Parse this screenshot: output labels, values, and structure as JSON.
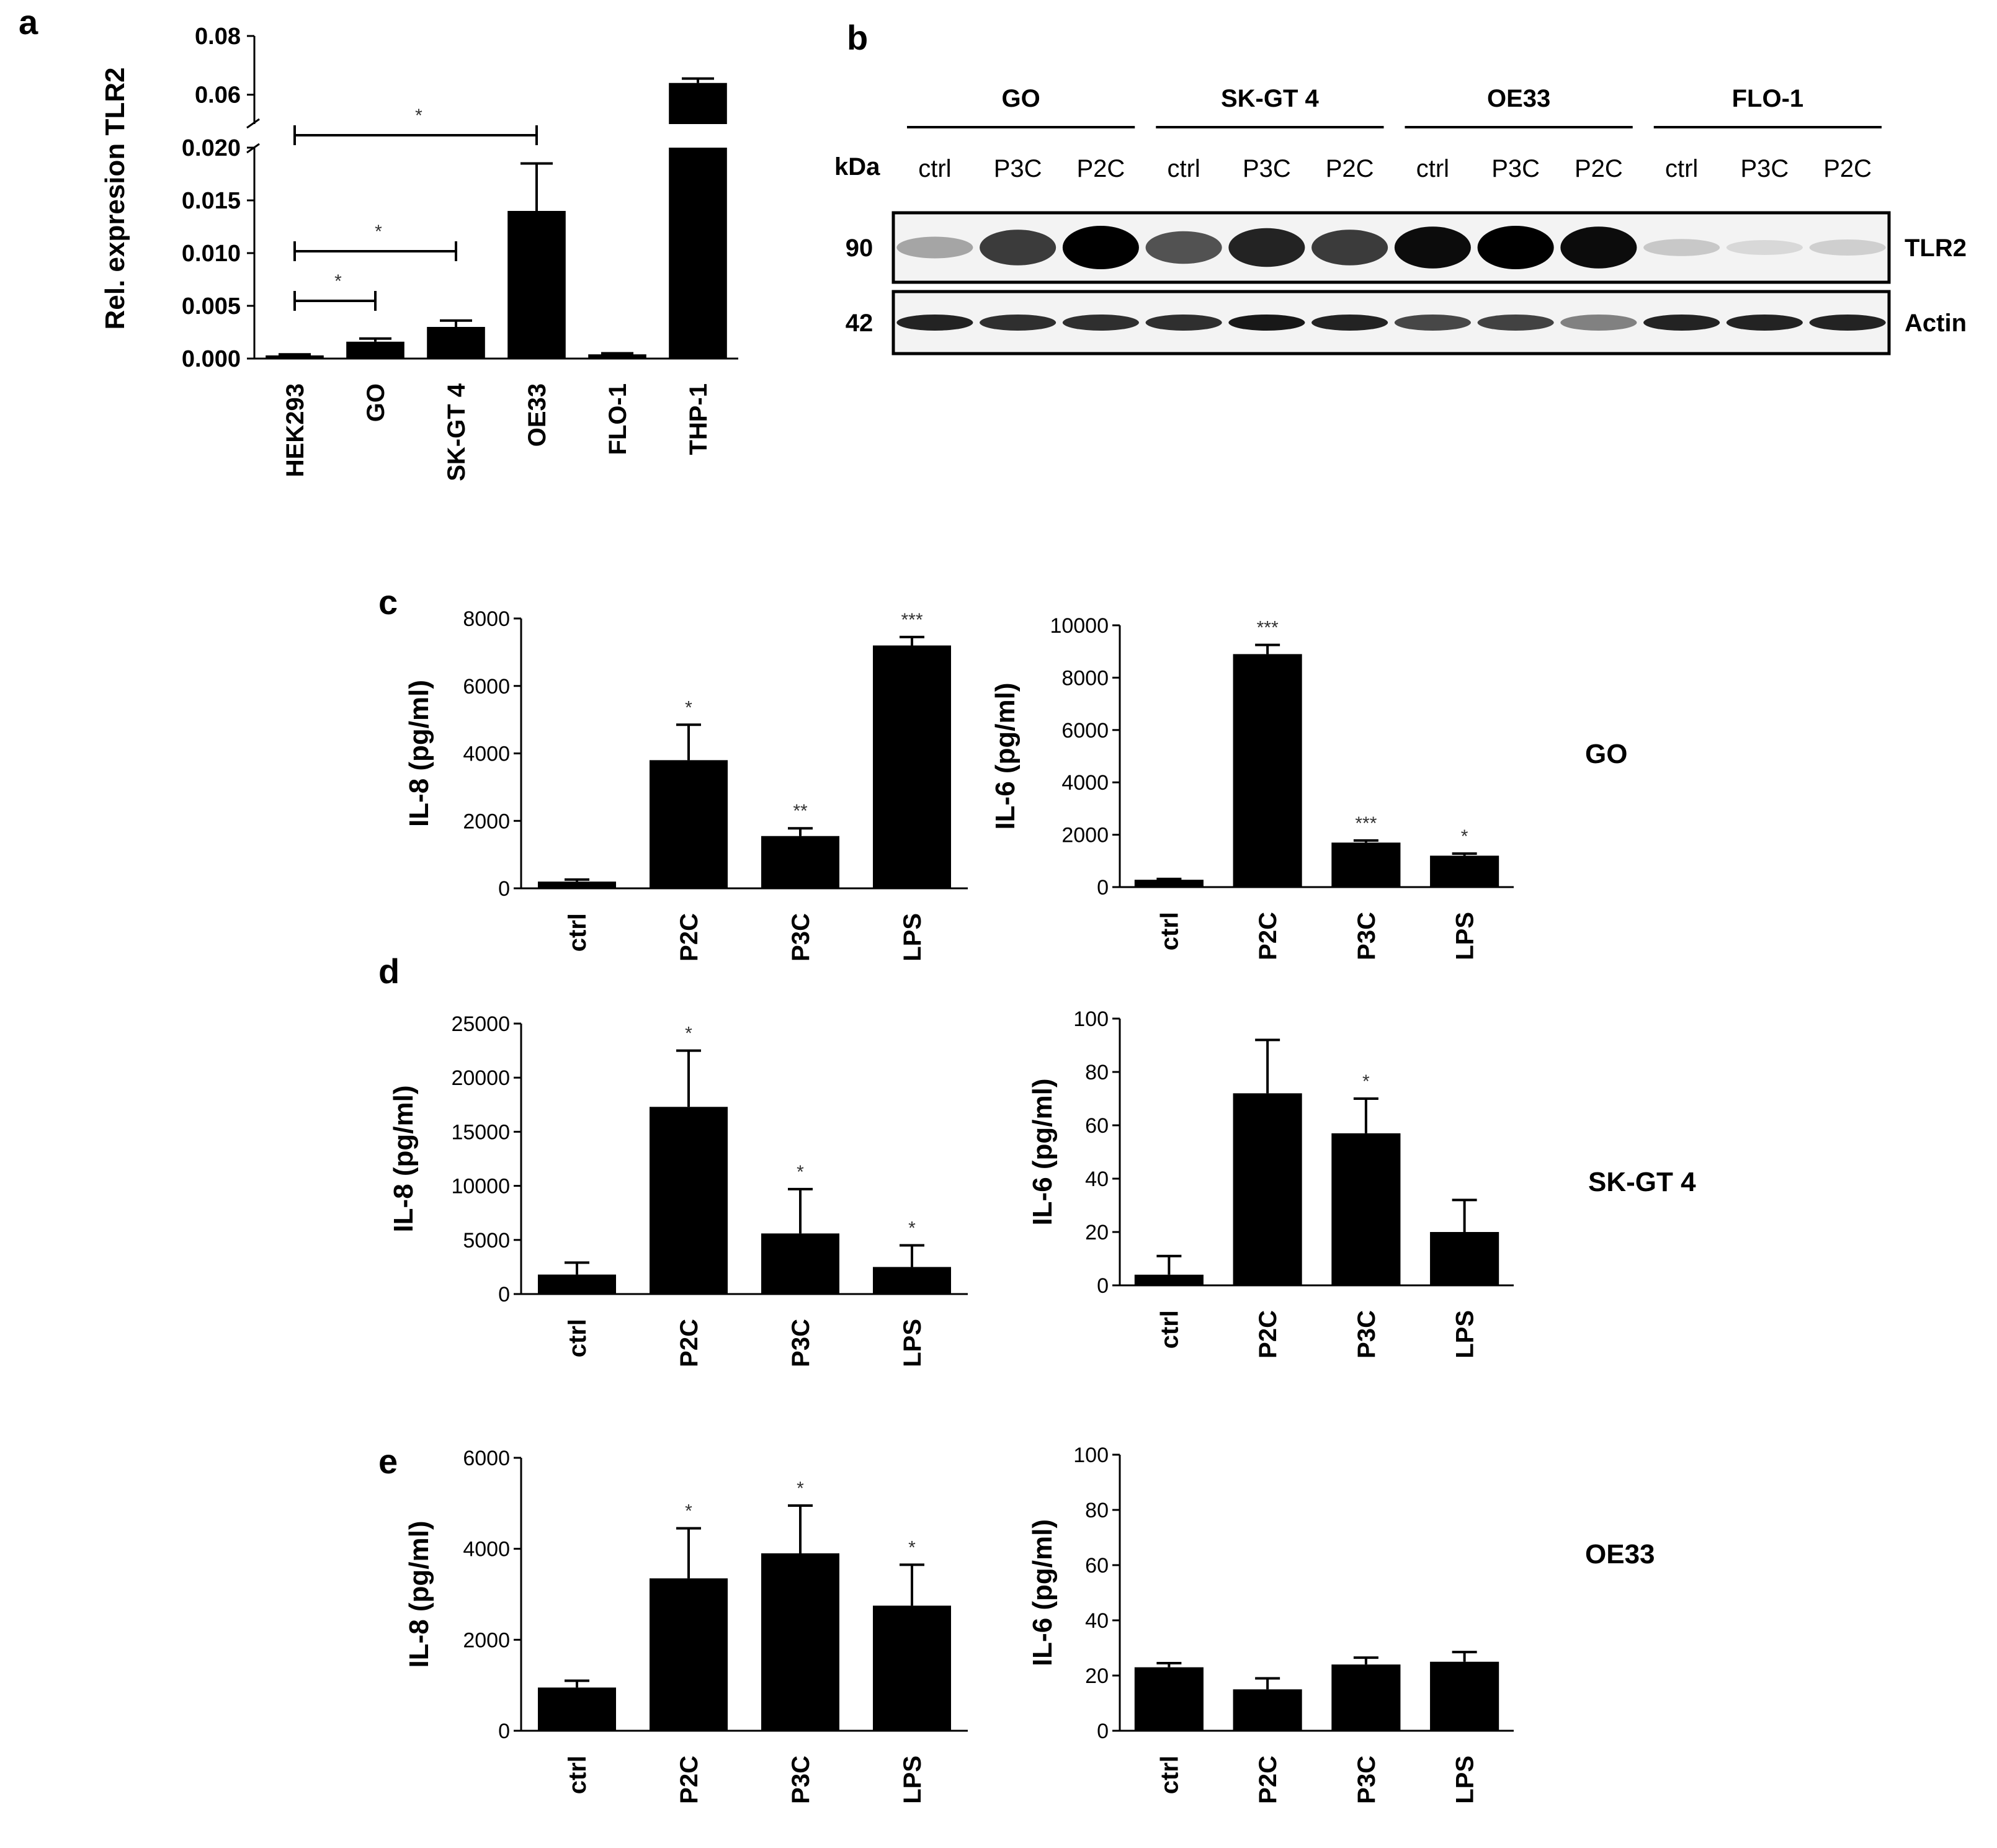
{
  "panels": {
    "a": {
      "letter": "a"
    },
    "b": {
      "letter": "b"
    },
    "c": {
      "letter": "c"
    },
    "d": {
      "letter": "d"
    },
    "e": {
      "letter": "e"
    }
  },
  "row_labels": {
    "c": "GO",
    "d": "SK-GT 4",
    "e": "OE33"
  },
  "chart_data": [
    {
      "id": "a",
      "type": "bar",
      "ylabel": "Rel. expresion TLR2",
      "categories": [
        "HEK293",
        "GO",
        "SK-GT 4",
        "OE33",
        "FLO-1",
        "THP-1"
      ],
      "values": [
        0.0003,
        0.0016,
        0.003,
        0.014,
        0.0004,
        0.064
      ],
      "errors": [
        0.0001,
        0.0003,
        0.0006,
        0.0045,
        0.0001,
        0.0015
      ],
      "axis_break": {
        "lower": [
          0,
          0.02
        ],
        "upper": [
          0.05,
          0.08
        ]
      },
      "yticks_lower": [
        "0.000",
        "0.005",
        "0.010",
        "0.015",
        "0.020"
      ],
      "yticks_upper": [
        "0.06",
        "0.08"
      ],
      "significance": [
        {
          "from": "HEK293",
          "to": "GO",
          "label": "*"
        },
        {
          "from": "HEK293",
          "to": "SK-GT 4",
          "label": "*"
        },
        {
          "from": "HEK293",
          "to": "OE33",
          "label": "*"
        }
      ]
    },
    {
      "id": "c-il8",
      "type": "bar",
      "ylabel": "IL-8 (pg/ml)",
      "categories": [
        "ctrl",
        "P2C",
        "P3C",
        "LPS"
      ],
      "values": [
        200,
        3800,
        1550,
        7200
      ],
      "errors": [
        60,
        1050,
        230,
        250
      ],
      "sig": [
        "",
        "*",
        "**",
        "***"
      ],
      "ylim": [
        0,
        8000
      ],
      "yticks": [
        0,
        2000,
        4000,
        6000,
        8000
      ]
    },
    {
      "id": "c-il6",
      "type": "bar",
      "ylabel": "IL-6 (pg/ml)",
      "categories": [
        "ctrl",
        "P2C",
        "P3C",
        "LPS"
      ],
      "values": [
        280,
        8900,
        1700,
        1200
      ],
      "errors": [
        30,
        350,
        80,
        80
      ],
      "sig": [
        "",
        "***",
        "***",
        "*"
      ],
      "ylim": [
        0,
        10000
      ],
      "yticks": [
        0,
        2000,
        4000,
        6000,
        8000,
        10000
      ]
    },
    {
      "id": "d-il8",
      "type": "bar",
      "ylabel": "IL-8 (pg/ml)",
      "categories": [
        "ctrl",
        "P2C",
        "P3C",
        "LPS"
      ],
      "values": [
        1800,
        17300,
        5600,
        2500
      ],
      "errors": [
        1100,
        5200,
        4100,
        2000
      ],
      "sig": [
        "",
        "*",
        "*",
        "*"
      ],
      "ylim": [
        0,
        25000
      ],
      "yticks": [
        0,
        5000,
        10000,
        15000,
        20000,
        25000
      ]
    },
    {
      "id": "d-il6",
      "type": "bar",
      "ylabel": "IL-6 (pg/ml)",
      "categories": [
        "ctrl",
        "P2C",
        "P3C",
        "LPS"
      ],
      "values": [
        4,
        72,
        57,
        20
      ],
      "errors": [
        7,
        20,
        13,
        12
      ],
      "sig": [
        "",
        "",
        "*",
        ""
      ],
      "ylim": [
        0,
        100
      ],
      "yticks": [
        0,
        20,
        40,
        60,
        80,
        100
      ]
    },
    {
      "id": "e-il8",
      "type": "bar",
      "ylabel": "IL-8 (pg/ml)",
      "categories": [
        "ctrl",
        "P2C",
        "P3C",
        "LPS"
      ],
      "values": [
        950,
        3350,
        3900,
        2750
      ],
      "errors": [
        150,
        1100,
        1050,
        900
      ],
      "sig": [
        "",
        "*",
        "*",
        "*"
      ],
      "ylim": [
        0,
        6000
      ],
      "yticks": [
        0,
        2000,
        4000,
        6000
      ]
    },
    {
      "id": "e-il6",
      "type": "bar",
      "ylabel": "IL-6 (pg/ml)",
      "categories": [
        "ctrl",
        "P2C",
        "P3C",
        "LPS"
      ],
      "values": [
        23,
        15,
        24,
        25
      ],
      "errors": [
        1.5,
        4,
        2.5,
        3.5
      ],
      "sig": [
        "",
        "",
        "",
        ""
      ],
      "ylim": [
        0,
        100
      ],
      "yticks": [
        0,
        20,
        40,
        60,
        80,
        100
      ]
    }
  ],
  "western_blot": {
    "groups": [
      "GO",
      "SK-GT 4",
      "OE33",
      "FLO-1"
    ],
    "lanes": [
      "ctrl",
      "P3C",
      "P2C",
      "ctrl",
      "P3C",
      "P2C",
      "ctrl",
      "P3C",
      "P2C",
      "ctrl",
      "P3C",
      "P2C"
    ],
    "kda_label": "kDa",
    "rows": [
      {
        "name": "TLR2",
        "kda": "90",
        "intensity": [
          0.3,
          0.75,
          1.0,
          0.65,
          0.85,
          0.75,
          0.95,
          1.0,
          0.95,
          0.15,
          0.08,
          0.12
        ]
      },
      {
        "name": "Actin",
        "kda": "42",
        "intensity": [
          0.85,
          0.8,
          0.8,
          0.8,
          0.9,
          0.85,
          0.7,
          0.72,
          0.45,
          0.85,
          0.85,
          0.85
        ]
      }
    ]
  }
}
